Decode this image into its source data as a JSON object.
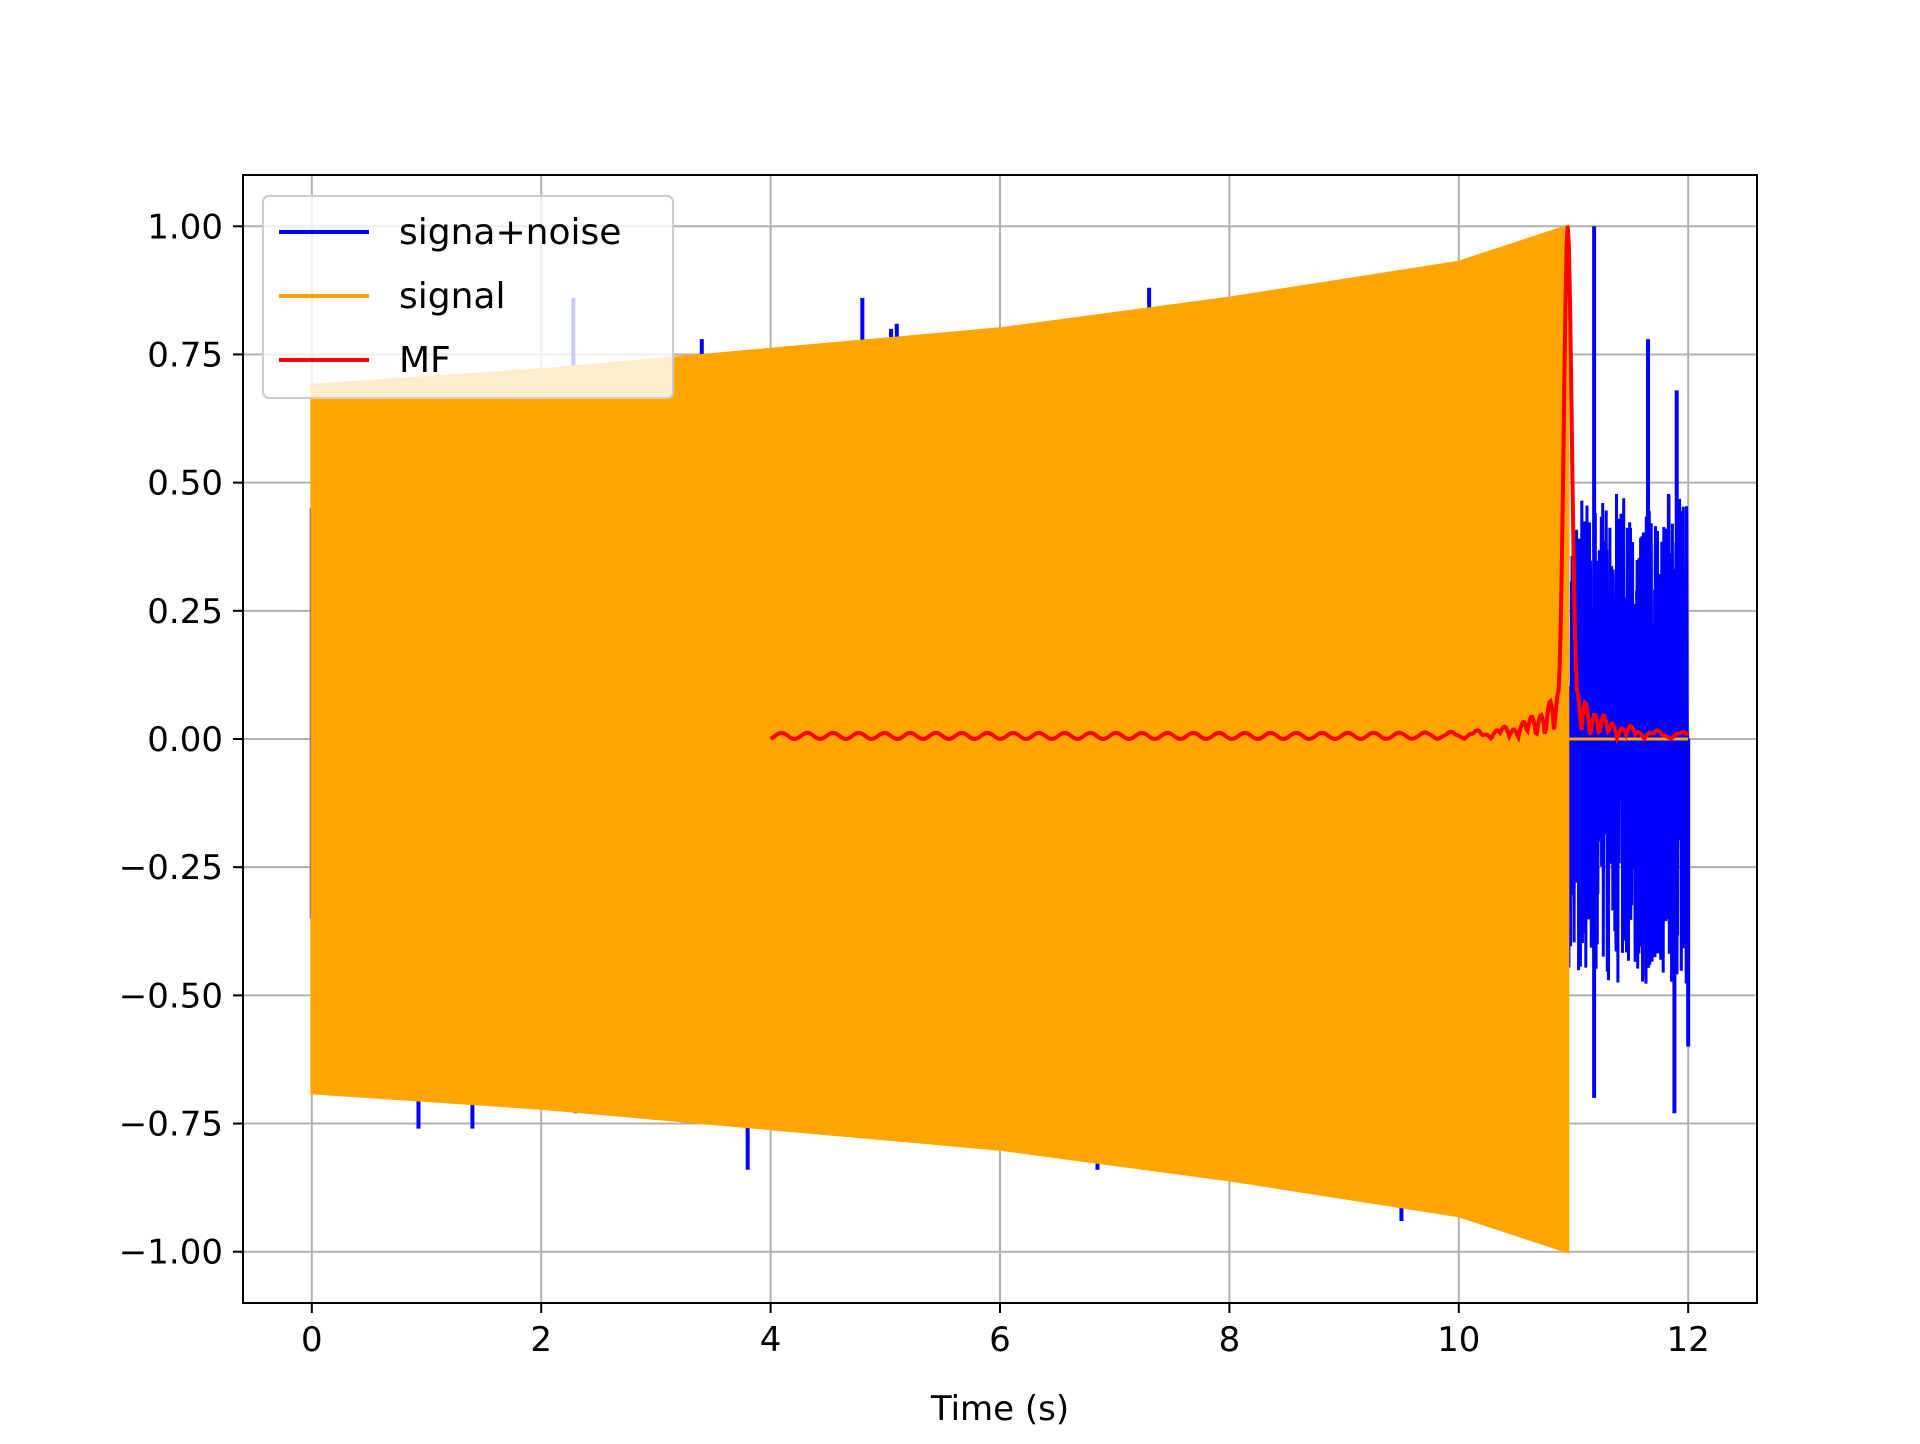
{
  "chart_data": {
    "type": "line",
    "title": "",
    "xlabel": "Time (s)",
    "ylabel": "",
    "xlim": [
      -0.6,
      12.6
    ],
    "ylim": [
      -1.1,
      1.1
    ],
    "xticks": [
      0,
      2,
      4,
      6,
      8,
      10,
      12
    ],
    "xtick_labels": [
      "0",
      "2",
      "4",
      "6",
      "8",
      "10",
      "12"
    ],
    "yticks": [
      1.0,
      0.75,
      0.5,
      0.25,
      0.0,
      -0.25,
      -0.5,
      -0.75,
      -1.0
    ],
    "ytick_labels": [
      "1.00",
      "0.75",
      "0.50",
      "0.25",
      "0.00",
      "−0.25",
      "−0.50",
      "−0.75",
      "−1.00"
    ],
    "grid": true,
    "legend_position": "top-left",
    "series": [
      {
        "name": "signa+noise",
        "color": "#0000ff",
        "description_points": [
          {
            "x": 0.0,
            "y": 0.45
          },
          {
            "x": 0.0,
            "y": -0.35
          },
          {
            "x": 0.93,
            "y": -0.76
          },
          {
            "x": 1.4,
            "y": -0.76
          },
          {
            "x": 2.28,
            "y": 0.86
          },
          {
            "x": 2.3,
            "y": -0.73
          },
          {
            "x": 3.4,
            "y": 0.78
          },
          {
            "x": 3.8,
            "y": -0.84
          },
          {
            "x": 4.8,
            "y": 0.86
          },
          {
            "x": 5.05,
            "y": 0.8
          },
          {
            "x": 5.1,
            "y": 0.81
          },
          {
            "x": 6.85,
            "y": -0.84
          },
          {
            "x": 7.3,
            "y": 0.88
          },
          {
            "x": 9.5,
            "y": -0.94
          },
          {
            "x": 11.18,
            "y": 1.0
          },
          {
            "x": 11.18,
            "y": -0.7
          },
          {
            "x": 11.65,
            "y": 0.78
          },
          {
            "x": 11.88,
            "y": -0.73
          },
          {
            "x": 11.9,
            "y": 0.68
          },
          {
            "x": 12.0,
            "y": -0.6
          }
        ]
      },
      {
        "name": "signal",
        "color": "#ffa500",
        "envelope": [
          {
            "x": 0.0,
            "y": 0.69
          },
          {
            "x": 2.0,
            "y": 0.72
          },
          {
            "x": 4.0,
            "y": 0.76
          },
          {
            "x": 6.0,
            "y": 0.8
          },
          {
            "x": 8.0,
            "y": 0.86
          },
          {
            "x": 10.0,
            "y": 0.93
          },
          {
            "x": 10.95,
            "y": 1.0
          }
        ],
        "end_x": 10.95
      },
      {
        "name": "MF",
        "color": "#ff0000",
        "points": [
          {
            "x": 4.0,
            "y": 0.015
          },
          {
            "x": 5.0,
            "y": 0.01
          },
          {
            "x": 6.0,
            "y": 0.005
          },
          {
            "x": 7.0,
            "y": 0.005
          },
          {
            "x": 8.0,
            "y": 0.005
          },
          {
            "x": 9.0,
            "y": 0.005
          },
          {
            "x": 10.0,
            "y": 0.01
          },
          {
            "x": 10.5,
            "y": 0.03
          },
          {
            "x": 10.8,
            "y": 0.2
          },
          {
            "x": 10.95,
            "y": 1.0
          },
          {
            "x": 11.1,
            "y": 0.2
          },
          {
            "x": 11.5,
            "y": 0.03
          },
          {
            "x": 12.0,
            "y": 0.01
          }
        ]
      }
    ]
  }
}
